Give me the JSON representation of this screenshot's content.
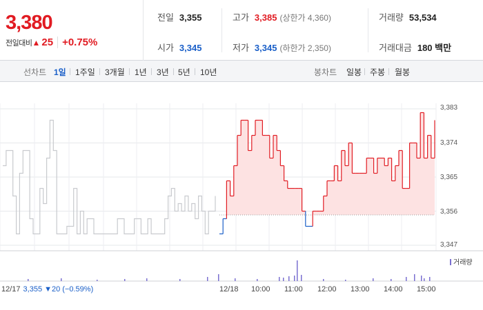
{
  "quote": {
    "price": "3,380",
    "change_label": "전일대비",
    "change_arrow": "▲",
    "change_value": "25",
    "change_pct": "+0.75%"
  },
  "stats": {
    "prev_close_label": "전일",
    "prev_close": "3,355",
    "high_label": "고가",
    "high": "3,385",
    "upper_limit": "(상한가 4,360)",
    "volume_label": "거래량",
    "volume": "53,534",
    "open_label": "시가",
    "open": "3,345",
    "low_label": "저가",
    "low": "3,345",
    "lower_limit": "(하한가 2,350)",
    "amount_label": "거래대금",
    "amount": "180 백만"
  },
  "period_tabs": {
    "line_label": "선차트",
    "line_items": [
      "1일",
      "1주일",
      "3개월",
      "1년",
      "3년",
      "5년",
      "10년"
    ],
    "selected": "1일",
    "candle_label": "봉차트",
    "candle_items": [
      "일봉",
      "주봉",
      "월봉"
    ]
  },
  "bottom": {
    "date": "12/17",
    "info": "3,355 ▼20 (−0.59%)",
    "times": [
      "12/18",
      "10:00",
      "11:00",
      "12:00",
      "13:00",
      "14:00",
      "15:00"
    ]
  },
  "volume_legend": "거래량",
  "colors": {
    "up": "#e11b22",
    "down": "#1a5fc8",
    "prev_day": "#c8cace",
    "fill": "#fde2e2"
  },
  "chart_data": {
    "type": "line",
    "y_ticks": [
      "3,383",
      "3,374",
      "3,365",
      "3,356",
      "3,347"
    ],
    "ylim": [
      3347,
      3383
    ],
    "baseline": 3355,
    "prev_day_y": [
      3368,
      3372,
      3372,
      3360,
      3350,
      3366,
      3372,
      3372,
      3354,
      3350,
      3350,
      3362,
      3358,
      3370,
      3380,
      3372,
      3350,
      3350,
      3350,
      3352,
      3352,
      3362,
      3350,
      3356,
      3350,
      3354,
      3354,
      3350,
      3350,
      3350,
      3350,
      3350,
      3350,
      3350,
      3354,
      3354,
      3350,
      3350,
      3350,
      3354,
      3354,
      3350,
      3350,
      3354,
      3350,
      3350,
      3350,
      3350,
      3354,
      3360,
      3362,
      3356,
      3358,
      3356,
      3360,
      3356,
      3358,
      3354,
      3360,
      3356,
      3350,
      3356,
      3356,
      3360
    ],
    "today_y": [
      3350,
      3354,
      3364,
      3360,
      3368,
      3376,
      3380,
      3380,
      3372,
      3376,
      3380,
      3380,
      3376,
      3376,
      3370,
      3376,
      3372,
      3368,
      3364,
      3362,
      3362,
      3362,
      3362,
      3356,
      3352,
      3352,
      3356,
      3356,
      3356,
      3360,
      3364,
      3364,
      3368,
      3364,
      3372,
      3368,
      3374,
      3366,
      3366,
      3366,
      3366,
      3370,
      3370,
      3366,
      3370,
      3370,
      3368,
      3370,
      3364,
      3368,
      3372,
      3362,
      3362,
      3374,
      3374,
      3370,
      3382,
      3370,
      3376,
      3370,
      3380
    ]
  }
}
